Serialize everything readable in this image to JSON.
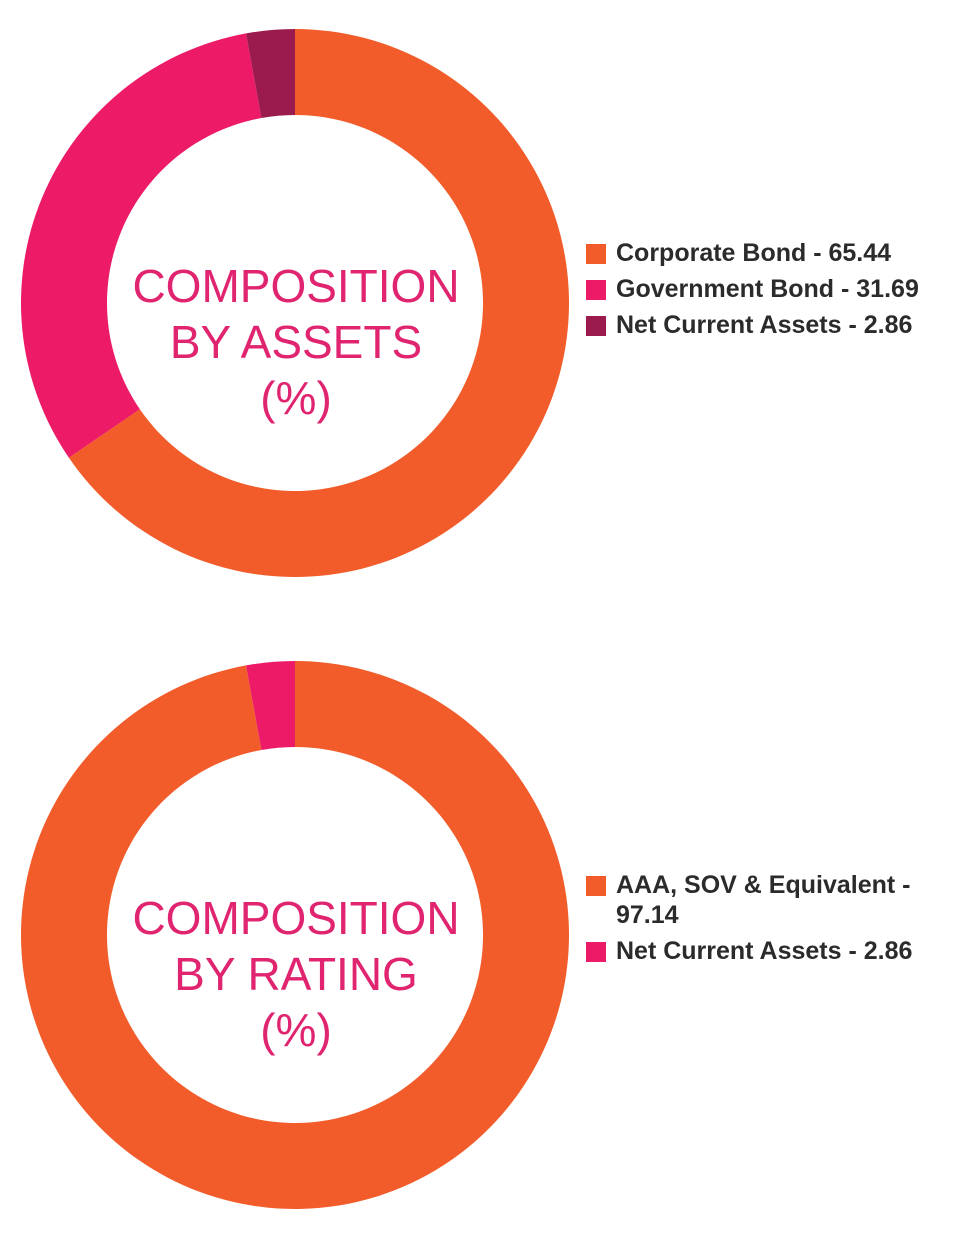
{
  "chart_data": [
    {
      "type": "pie",
      "title_lines": [
        "COMPOSITION",
        "BY ASSETS",
        "(%)"
      ],
      "categories": [
        "Corporate Bond",
        "Government Bond",
        "Net Current Assets"
      ],
      "values": [
        65.44,
        31.69,
        2.86
      ],
      "colors": [
        "#f15c2a",
        "#ec1a67",
        "#9b1b4f"
      ],
      "legend_labels": [
        "Corporate Bond - 65.44",
        "Government Bond - 31.69",
        "Net Current Assets - 2.86"
      ],
      "legend_position": "right"
    },
    {
      "type": "pie",
      "title_lines": [
        "COMPOSITION",
        "BY RATING",
        "(%)"
      ],
      "categories": [
        "AAA, SOV & Equivalent",
        "Net Current Assets"
      ],
      "values": [
        97.14,
        2.86
      ],
      "colors": [
        "#f15c2a",
        "#ec1a67"
      ],
      "legend_labels": [
        "AAA, SOV & Equivalent - 97.14",
        "Net Current Assets - 2.86"
      ],
      "legend_position": "right"
    }
  ]
}
